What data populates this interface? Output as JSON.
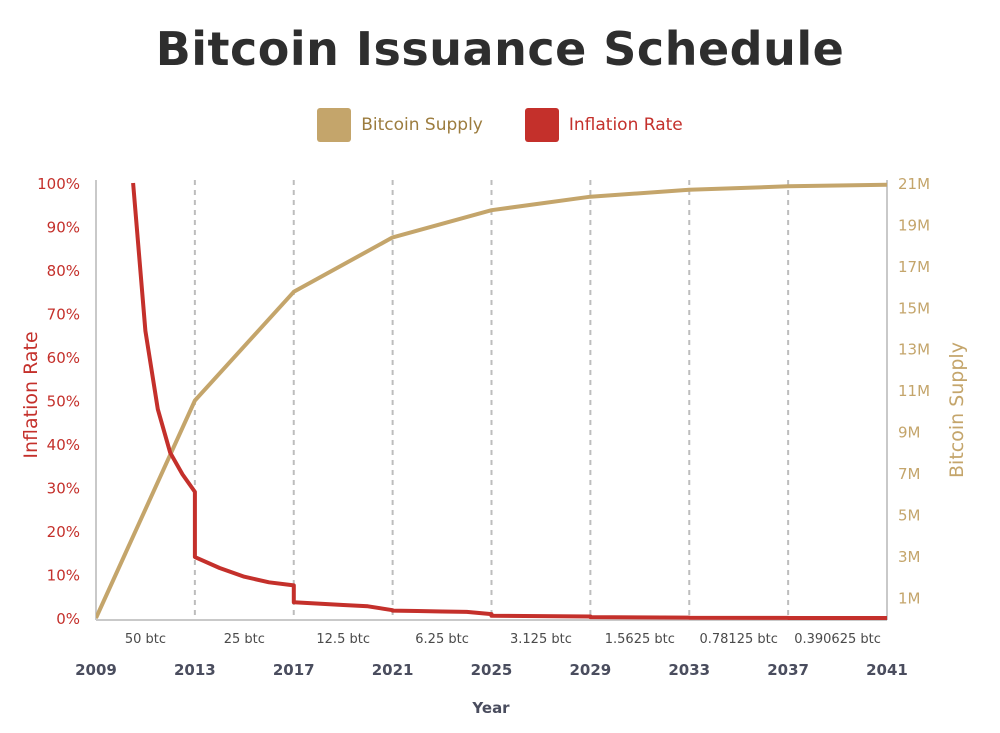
{
  "colors": {
    "supply": "#c4a56b",
    "inflation": "#c4302b",
    "grid": "#bdbdbd",
    "axis_text": "#4a4d5e"
  },
  "chart_data": {
    "type": "line",
    "title": "Bitcoin Issuance Schedule",
    "xlabel": "Year",
    "ylabel_left": "Inflation Rate",
    "ylabel_right": "Bitcoin Supply",
    "xlim": [
      2009,
      2041
    ],
    "ylim_left": [
      0,
      100
    ],
    "ylim_right": [
      0,
      21
    ],
    "x_ticks": [
      "2009",
      "2013",
      "2017",
      "2021",
      "2025",
      "2029",
      "2033",
      "2037",
      "2041"
    ],
    "left_ticks": [
      "0%",
      "10%",
      "20%",
      "30%",
      "40%",
      "50%",
      "60%",
      "70%",
      "80%",
      "90%",
      "100%"
    ],
    "right_ticks": [
      "1M",
      "3M",
      "5M",
      "7M",
      "9M",
      "11M",
      "13M",
      "15M",
      "17M",
      "19M",
      "21M"
    ],
    "legend": [
      "Bitcoin Supply",
      "Inflation Rate"
    ],
    "legend_position": "top-center",
    "grid": "vertical dashed at halving years",
    "rewards": [
      "50 btc",
      "25 btc",
      "12.5 btc",
      "6.25 btc",
      "3.125 btc",
      "1.5625 btc",
      "0.78125 btc",
      "0.390625 btc"
    ],
    "series": [
      {
        "name": "Bitcoin Supply",
        "axis": "right",
        "unit": "M",
        "x": [
          2009,
          2013,
          2017,
          2021,
          2025,
          2029,
          2033,
          2037,
          2041
        ],
        "y": [
          0,
          10.5,
          15.75,
          18.375,
          19.6875,
          20.34,
          20.67,
          20.84,
          20.92
        ]
      },
      {
        "name": "Inflation Rate",
        "axis": "left",
        "unit": "%",
        "x": [
          2010.5,
          2011,
          2011.5,
          2012,
          2012.5,
          2013,
          2013,
          2014,
          2015,
          2016,
          2017,
          2017,
          2018,
          2019,
          2020,
          2021,
          2021,
          2022,
          2023,
          2024,
          2025,
          2025,
          2029,
          2029,
          2033,
          2033,
          2037,
          2037,
          2041
        ],
        "y": [
          100,
          66,
          48,
          38,
          33,
          29,
          14,
          11.5,
          9.5,
          8.2,
          7.5,
          3.6,
          3.3,
          3.0,
          2.7,
          1.8,
          1.7,
          1.6,
          1.5,
          1.4,
          0.9,
          0.5,
          0.35,
          0.2,
          0.1,
          0.05,
          0.02,
          0.01,
          0.0
        ]
      }
    ]
  }
}
